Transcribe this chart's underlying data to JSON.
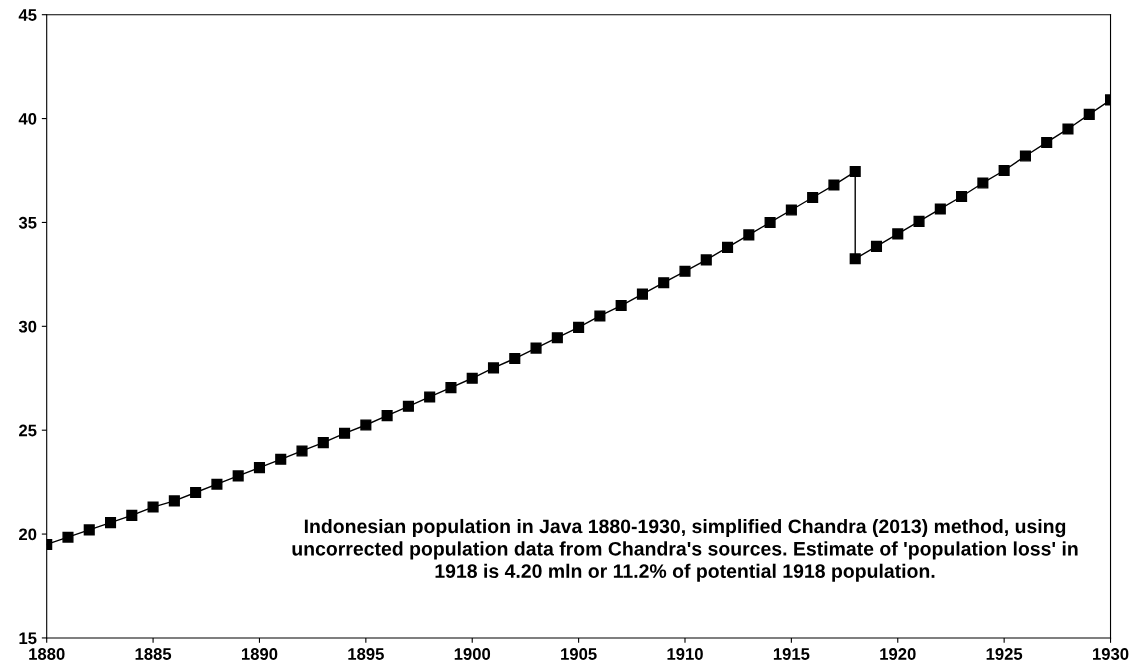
{
  "chart_data": {
    "type": "line",
    "x": [
      1880,
      1881,
      1882,
      1883,
      1884,
      1885,
      1886,
      1887,
      1888,
      1889,
      1890,
      1891,
      1892,
      1893,
      1894,
      1895,
      1896,
      1897,
      1898,
      1899,
      1900,
      1901,
      1902,
      1903,
      1904,
      1905,
      1906,
      1907,
      1908,
      1909,
      1910,
      1911,
      1912,
      1913,
      1914,
      1915,
      1916,
      1917,
      1918,
      1918,
      1919,
      1920,
      1921,
      1922,
      1923,
      1924,
      1925,
      1926,
      1927,
      1928,
      1929,
      1930
    ],
    "series": [
      {
        "color": "#000000",
        "values": [
          19.5,
          19.85,
          20.2,
          20.55,
          20.9,
          21.3,
          21.6,
          22.0,
          22.4,
          22.8,
          23.2,
          23.6,
          24.0,
          24.4,
          24.85,
          25.25,
          25.7,
          26.15,
          26.6,
          27.05,
          27.5,
          28.0,
          28.45,
          28.95,
          29.45,
          29.95,
          30.5,
          31.0,
          31.55,
          32.1,
          32.65,
          33.2,
          33.8,
          34.4,
          35.0,
          35.6,
          36.2,
          36.8,
          37.45,
          33.25,
          33.85,
          34.45,
          35.05,
          35.65,
          36.25,
          36.9,
          37.5,
          38.2,
          38.85,
          39.5,
          40.2,
          40.9
        ]
      }
    ],
    "xlim": [
      1880,
      1930
    ],
    "xticks": [
      1880,
      1885,
      1890,
      1895,
      1900,
      1905,
      1910,
      1915,
      1920,
      1925,
      1930
    ],
    "ylim": [
      15,
      45
    ],
    "yticks": [
      15,
      20,
      25,
      30,
      35,
      40,
      45
    ],
    "marker": "square",
    "line_style": "solid",
    "grid": false,
    "legend": false,
    "annotations": [
      "Indonesian population in Java 1880-1930, simplified Chandra (2013) method, using\nuncorrected population data from Chandra's sources. Estimate of 'population loss' in\n1918 is 4.20 mln or 11.2% of potential 1918 population."
    ]
  }
}
